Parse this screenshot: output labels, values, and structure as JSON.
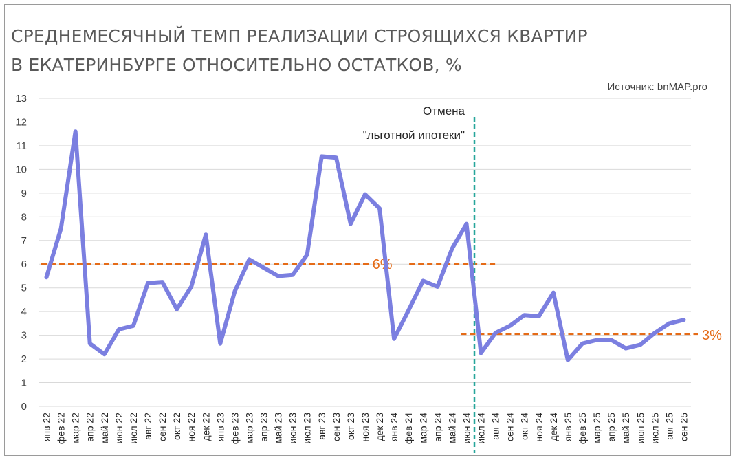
{
  "chart_data": {
    "type": "line",
    "title_line1": "СРЕДНЕМЕСЯЧНЫЙ  ТЕМП РЕАЛИЗАЦИИ СТРОЯЩИХСЯ КВАРТИР",
    "title_line2": "В ЕКАТЕРИНБУРГЕ ОТНОСИТЕЛЬНО ОСТАТКОВ, %",
    "source": "Источник: bnMAP.pro",
    "ylim": [
      0,
      13
    ],
    "yticks": [
      "0",
      "1",
      "2",
      "3",
      "4",
      "5",
      "6",
      "7",
      "8",
      "9",
      "10",
      "11",
      "12",
      "13"
    ],
    "grid": true,
    "line_color": "#7b7fe0",
    "ref_color": "#e56b17",
    "vline_color": "#26a69a",
    "categories": [
      "янв 22",
      "фев 22",
      "мар 22",
      "апр 22",
      "май 22",
      "июн 22",
      "июл 22",
      "авг 22",
      "сен 22",
      "окт 22",
      "ноя 22",
      "дек 22",
      "янв 23",
      "фев 23",
      "мар 23",
      "апр 23",
      "май 23",
      "июн 23",
      "июл 23",
      "авг 23",
      "сен 23",
      "окт 23",
      "ноя 23",
      "дек 23",
      "янв 24",
      "фев 24",
      "мар 24",
      "апр 24",
      "май 24",
      "июн 24",
      "июл 24",
      "авг 24",
      "сен 24",
      "окт 24",
      "ноя 24",
      "дек 24",
      "янв 25",
      "фев 25",
      "мар 25",
      "апр 25",
      "май 25",
      "июн 25",
      "июл 25",
      "авг 25",
      "сен 25"
    ],
    "values": [
      5.45,
      7.5,
      11.6,
      2.65,
      2.2,
      3.25,
      3.4,
      5.2,
      5.25,
      4.1,
      5.05,
      7.25,
      2.65,
      4.85,
      6.2,
      5.85,
      5.5,
      5.55,
      6.4,
      10.55,
      10.5,
      7.7,
      8.95,
      8.35,
      2.85,
      4.05,
      5.3,
      5.05,
      6.65,
      7.7,
      2.25,
      3.1,
      3.4,
      3.85,
      3.8,
      4.8,
      1.95,
      2.65,
      2.8,
      2.8,
      2.45,
      2.6,
      3.1,
      3.5,
      3.65
    ],
    "annotation": {
      "line1": "Отмена",
      "line2": "\"льготной ипотеки\"",
      "at_category": "июл 24"
    },
    "reference_lines": [
      {
        "value": 6,
        "label": "6%",
        "from": "янв 22",
        "to": "авг 24"
      },
      {
        "value": 3.05,
        "label": "3%",
        "from": "июн 24",
        "to": "сен 25"
      }
    ]
  }
}
